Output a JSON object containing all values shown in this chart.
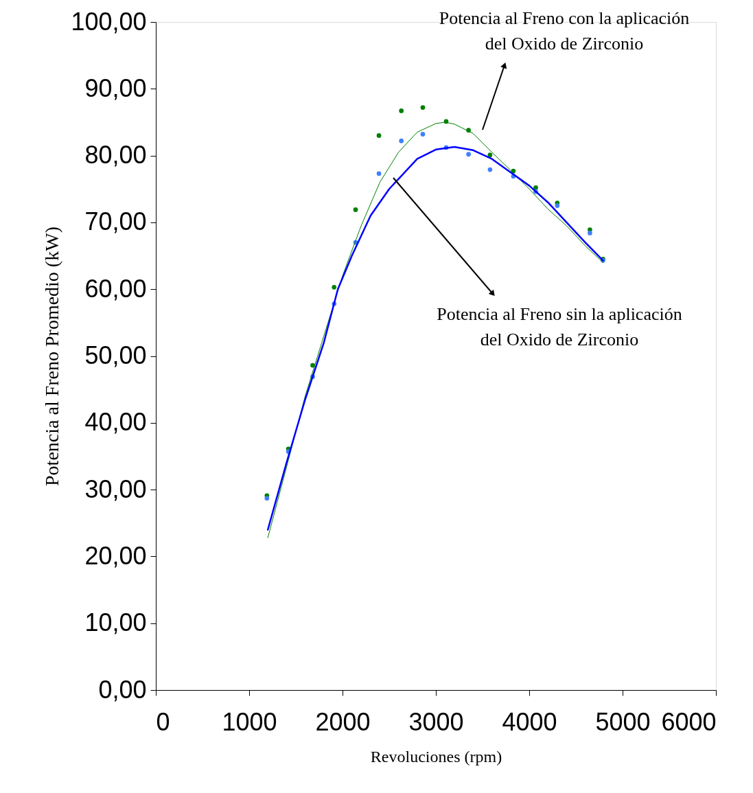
{
  "chart_data": {
    "type": "scatter",
    "xlabel": "Revoluciones (rpm)",
    "ylabel": "Potencia al Freno Promedio (kW)",
    "xlim": [
      0,
      6000
    ],
    "xticks": [
      0,
      1000,
      2000,
      3000,
      4000,
      5000,
      6000
    ],
    "ylim": [
      0,
      100
    ],
    "yticks": [
      {
        "value": 0,
        "label": "0,00"
      },
      {
        "value": 10,
        "label": "10,00"
      },
      {
        "value": 20,
        "label": "20,00"
      },
      {
        "value": 30,
        "label": "30,00"
      },
      {
        "value": 40,
        "label": "40,00"
      },
      {
        "value": 50,
        "label": "50,00"
      },
      {
        "value": 60,
        "label": "60,00"
      },
      {
        "value": 70,
        "label": "70,00"
      },
      {
        "value": 80,
        "label": "80,00"
      },
      {
        "value": 90,
        "label": "90,00"
      },
      {
        "value": 100,
        "label": "100,00"
      }
    ],
    "grid": false,
    "marker": "circle",
    "series": [
      {
        "color": "#008000",
        "x": [
          1190,
          1420,
          1680,
          1910,
          2140,
          2390,
          2630,
          2860,
          3110,
          3350,
          3580,
          3830,
          4070,
          4300,
          4650,
          4790
        ],
        "values": [
          29.1,
          36.1,
          48.6,
          60.3,
          71.9,
          83.0,
          86.7,
          87.2,
          85.1,
          83.8,
          80.1,
          77.7,
          75.2,
          72.9,
          68.9,
          64.5
        ]
      },
      {
        "color": "#4080ff",
        "x": [
          1190,
          1420,
          1680,
          1910,
          2140,
          2390,
          2630,
          2860,
          3110,
          3350,
          3580,
          3830,
          4070,
          4300,
          4650,
          4790
        ],
        "values": [
          28.7,
          35.7,
          46.9,
          57.8,
          67.0,
          77.3,
          82.2,
          83.2,
          81.2,
          80.2,
          77.9,
          76.9,
          74.6,
          72.5,
          68.4,
          64.3
        ]
      },
      {
        "type": "line",
        "color": "#008000",
        "marker": "none",
        "line_style": "solid",
        "x": [
          1200,
          1450,
          1600,
          1800,
          2000,
          2200,
          2400,
          2600,
          2800,
          3000,
          3100,
          3200,
          3400,
          3600,
          3800,
          4000,
          4200,
          4400,
          4600,
          4790
        ],
        "values": [
          22.8,
          36,
          44,
          53,
          62,
          69.5,
          76,
          80.5,
          83.5,
          84.8,
          85,
          84.7,
          83.3,
          80.5,
          77.8,
          75,
          72,
          69.5,
          66.5,
          64
        ]
      },
      {
        "type": "line",
        "color": "#0000ff",
        "marker": "none",
        "line_style": "solid",
        "x": [
          1200,
          1400,
          1600,
          1800,
          1950,
          2100,
          2300,
          2500,
          2600,
          2800,
          3000,
          3200,
          3400,
          3600,
          3800,
          4000,
          4200,
          4400,
          4600,
          4790
        ],
        "values": [
          24,
          34,
          43.5,
          52,
          60,
          65,
          71,
          75,
          76.5,
          79.5,
          80.9,
          81.3,
          80.8,
          79.5,
          77.5,
          75.5,
          73,
          70,
          67,
          64.3
        ]
      }
    ],
    "annotations": [
      "Potencia al Freno con la aplicación\ndel Oxido de Zirconio",
      "Potencia al Freno sin la aplicación\ndel Oxido de Zirconio"
    ]
  }
}
